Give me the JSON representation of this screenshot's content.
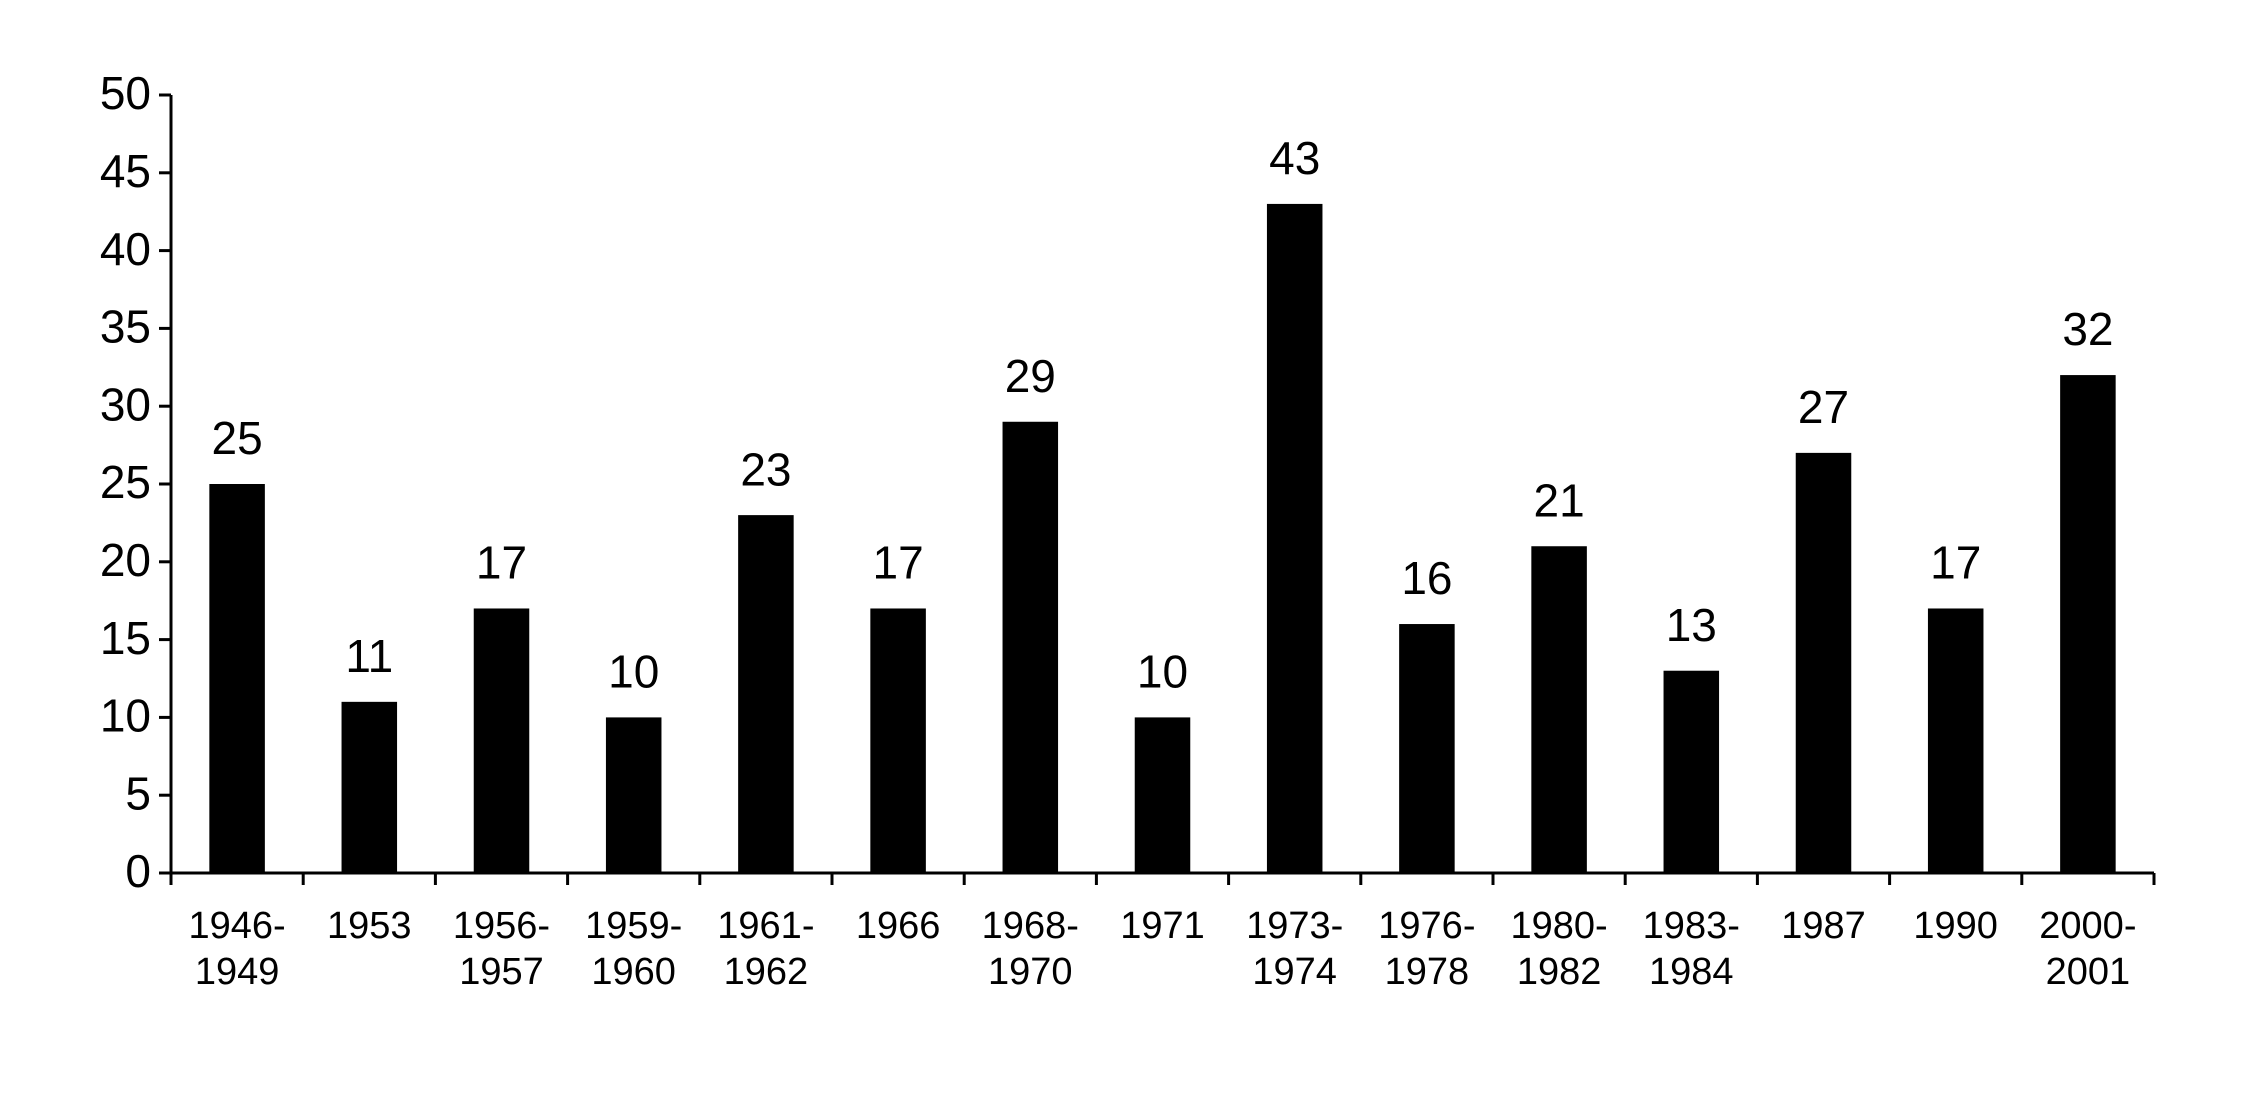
{
  "chart_data": {
    "type": "bar",
    "categories": [
      "1946-1949",
      "1953",
      "1956-1957",
      "1959-1960",
      "1961-1962",
      "1966",
      "1968-1970",
      "1971",
      "1973-1974",
      "1976-1978",
      "1980-1982",
      "1983-1984",
      "1987",
      "1990",
      "2000-2001"
    ],
    "values": [
      25,
      11,
      17,
      10,
      23,
      17,
      29,
      10,
      43,
      16,
      21,
      13,
      27,
      17,
      32
    ],
    "color": "#000000",
    "ylim": [
      0,
      50
    ],
    "yticks": [
      0,
      5,
      10,
      15,
      20,
      25,
      30,
      35,
      40,
      45,
      50
    ],
    "grid": false
  }
}
